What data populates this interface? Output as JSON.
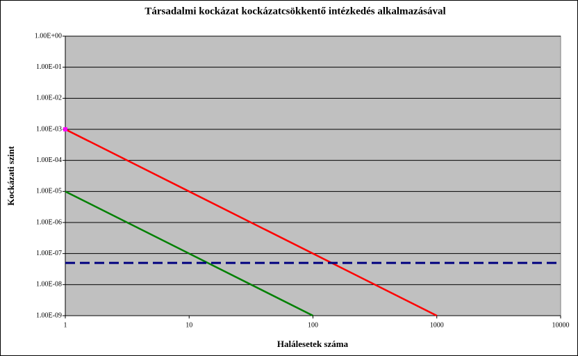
{
  "chart_data": {
    "type": "line",
    "title": "Társadalmi kockázat kockázatcsökkentő intézkedés alkalmazásával",
    "x_label": "Halálesetek száma",
    "y_label": "Kockázati szint",
    "x_scale": "log",
    "y_scale": "log",
    "xlim": [
      1,
      10000
    ],
    "xticks": [
      1,
      10,
      100,
      1000,
      10000
    ],
    "ylim": [
      1e-09,
      1
    ],
    "yticks": [
      {
        "value": 1e-09,
        "label": "1.00E-09"
      },
      {
        "value": 1e-08,
        "label": "1.00E-08"
      },
      {
        "value": 1e-07,
        "label": "1.00E-07"
      },
      {
        "value": 1e-06,
        "label": "1.00E-06"
      },
      {
        "value": 1e-05,
        "label": "1.00E-05"
      },
      {
        "value": 0.0001,
        "label": "1.00E-04"
      },
      {
        "value": 0.001,
        "label": "1.00E-03"
      },
      {
        "value": 0.01,
        "label": "1.00E-02"
      },
      {
        "value": 0.1,
        "label": "1.00E-01"
      },
      {
        "value": 1,
        "label": "1.00E+00"
      }
    ],
    "grid": true,
    "plot_background": "#c0c0c0",
    "series": [
      {
        "color": "#ff0000",
        "x": [
          1,
          1000
        ],
        "values": [
          0.001,
          1e-09
        ],
        "style": "solid"
      },
      {
        "color": "#008000",
        "x": [
          1,
          100
        ],
        "values": [
          1e-05,
          1e-09
        ],
        "style": "solid"
      },
      {
        "color": "#000080",
        "x": [
          1,
          10000
        ],
        "values": [
          5e-08,
          5e-08
        ],
        "style": "dashed"
      },
      {
        "color": "#ff00ff",
        "x": [
          1
        ],
        "values": [
          0.001
        ],
        "style": "marker"
      }
    ]
  }
}
